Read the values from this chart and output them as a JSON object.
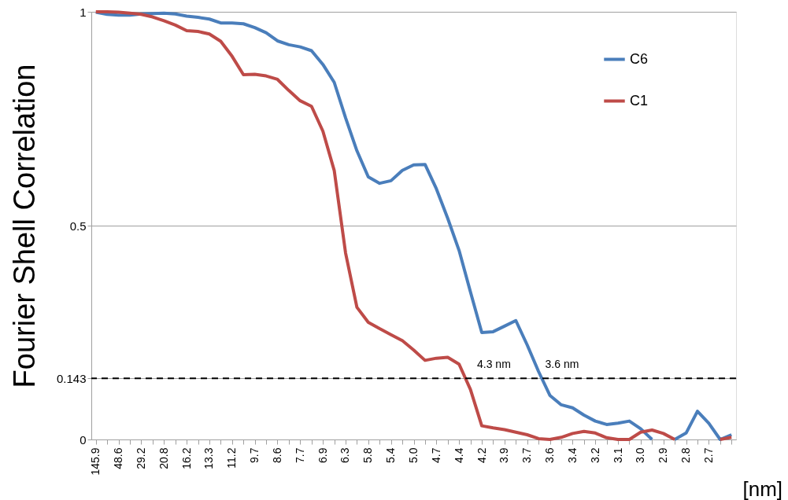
{
  "chart_data": {
    "type": "line",
    "ylabel": "Fourier Shell Correlation",
    "xlabel": "[nm]",
    "categories": [
      "145.9",
      null,
      "48.6",
      null,
      "29.2",
      null,
      "20.8",
      null,
      "16.2",
      null,
      "13.3",
      null,
      "11.2",
      null,
      "9.7",
      null,
      "8.6",
      null,
      "7.7",
      null,
      "6.9",
      null,
      "6.3",
      null,
      "5.8",
      null,
      "5.4",
      null,
      "5.0",
      null,
      "4.7",
      null,
      "4.4",
      null,
      "4.2",
      null,
      "3.9",
      null,
      "3.7",
      null,
      "3.6",
      null,
      "3.4",
      null,
      "3.2",
      null,
      "3.1",
      null,
      "3.0",
      null,
      "2.9",
      null,
      "2.8",
      null,
      "2.7",
      null,
      null
    ],
    "series": [
      {
        "name": "C6",
        "color": "#4a7ebb",
        "values": [
          0.999,
          0.994,
          0.992,
          0.992,
          0.995,
          0.996,
          0.997,
          0.995,
          0.99,
          0.987,
          0.983,
          0.974,
          0.974,
          0.972,
          0.963,
          0.951,
          0.932,
          0.923,
          0.918,
          0.909,
          0.877,
          0.835,
          0.752,
          0.675,
          0.614,
          0.599,
          0.605,
          0.629,
          0.642,
          0.643,
          0.586,
          0.517,
          0.442,
          0.345,
          0.25,
          0.252,
          0.265,
          0.278,
          0.221,
          0.159,
          0.103,
          0.081,
          0.074,
          0.057,
          0.043,
          0.035,
          0.038,
          0.043,
          0.025,
          0,
          null,
          0,
          0.015,
          0.066,
          0.038,
          0,
          0.011
        ]
      },
      {
        "name": "C1",
        "color": "#be4b48",
        "values": [
          1.0,
          1.0,
          0.999,
          0.997,
          0.994,
          0.988,
          0.979,
          0.969,
          0.956,
          0.954,
          0.948,
          0.931,
          0.896,
          0.853,
          0.854,
          0.85,
          0.842,
          0.816,
          0.792,
          0.779,
          0.721,
          0.629,
          0.436,
          0.309,
          0.274,
          0.259,
          0.245,
          0.231,
          0.209,
          0.185,
          0.19,
          0.192,
          0.176,
          0.117,
          0.032,
          0.027,
          0.023,
          0.017,
          0.011,
          0.002,
          0,
          0.005,
          0.014,
          0.019,
          0.015,
          0.004,
          0,
          0,
          0.017,
          0.022,
          0.014,
          0,
          null,
          null,
          null,
          0,
          0.005
        ]
      }
    ],
    "ylim": [
      0,
      1
    ],
    "yticks": [
      0,
      0.143,
      0.5,
      1
    ],
    "grid": "y",
    "legend": "top right",
    "marker": "none",
    "line_style": "solid",
    "ref_lines": [
      {
        "axis": "y",
        "value": 0.143,
        "color": "#000000",
        "line_style": "dashed"
      }
    ],
    "annotations": [
      {
        "text": "4.3 nm",
        "x": "4.2",
        "y": 0.143
      },
      {
        "text": "3.6 nm",
        "x": "3.6",
        "y": 0.143
      }
    ]
  }
}
